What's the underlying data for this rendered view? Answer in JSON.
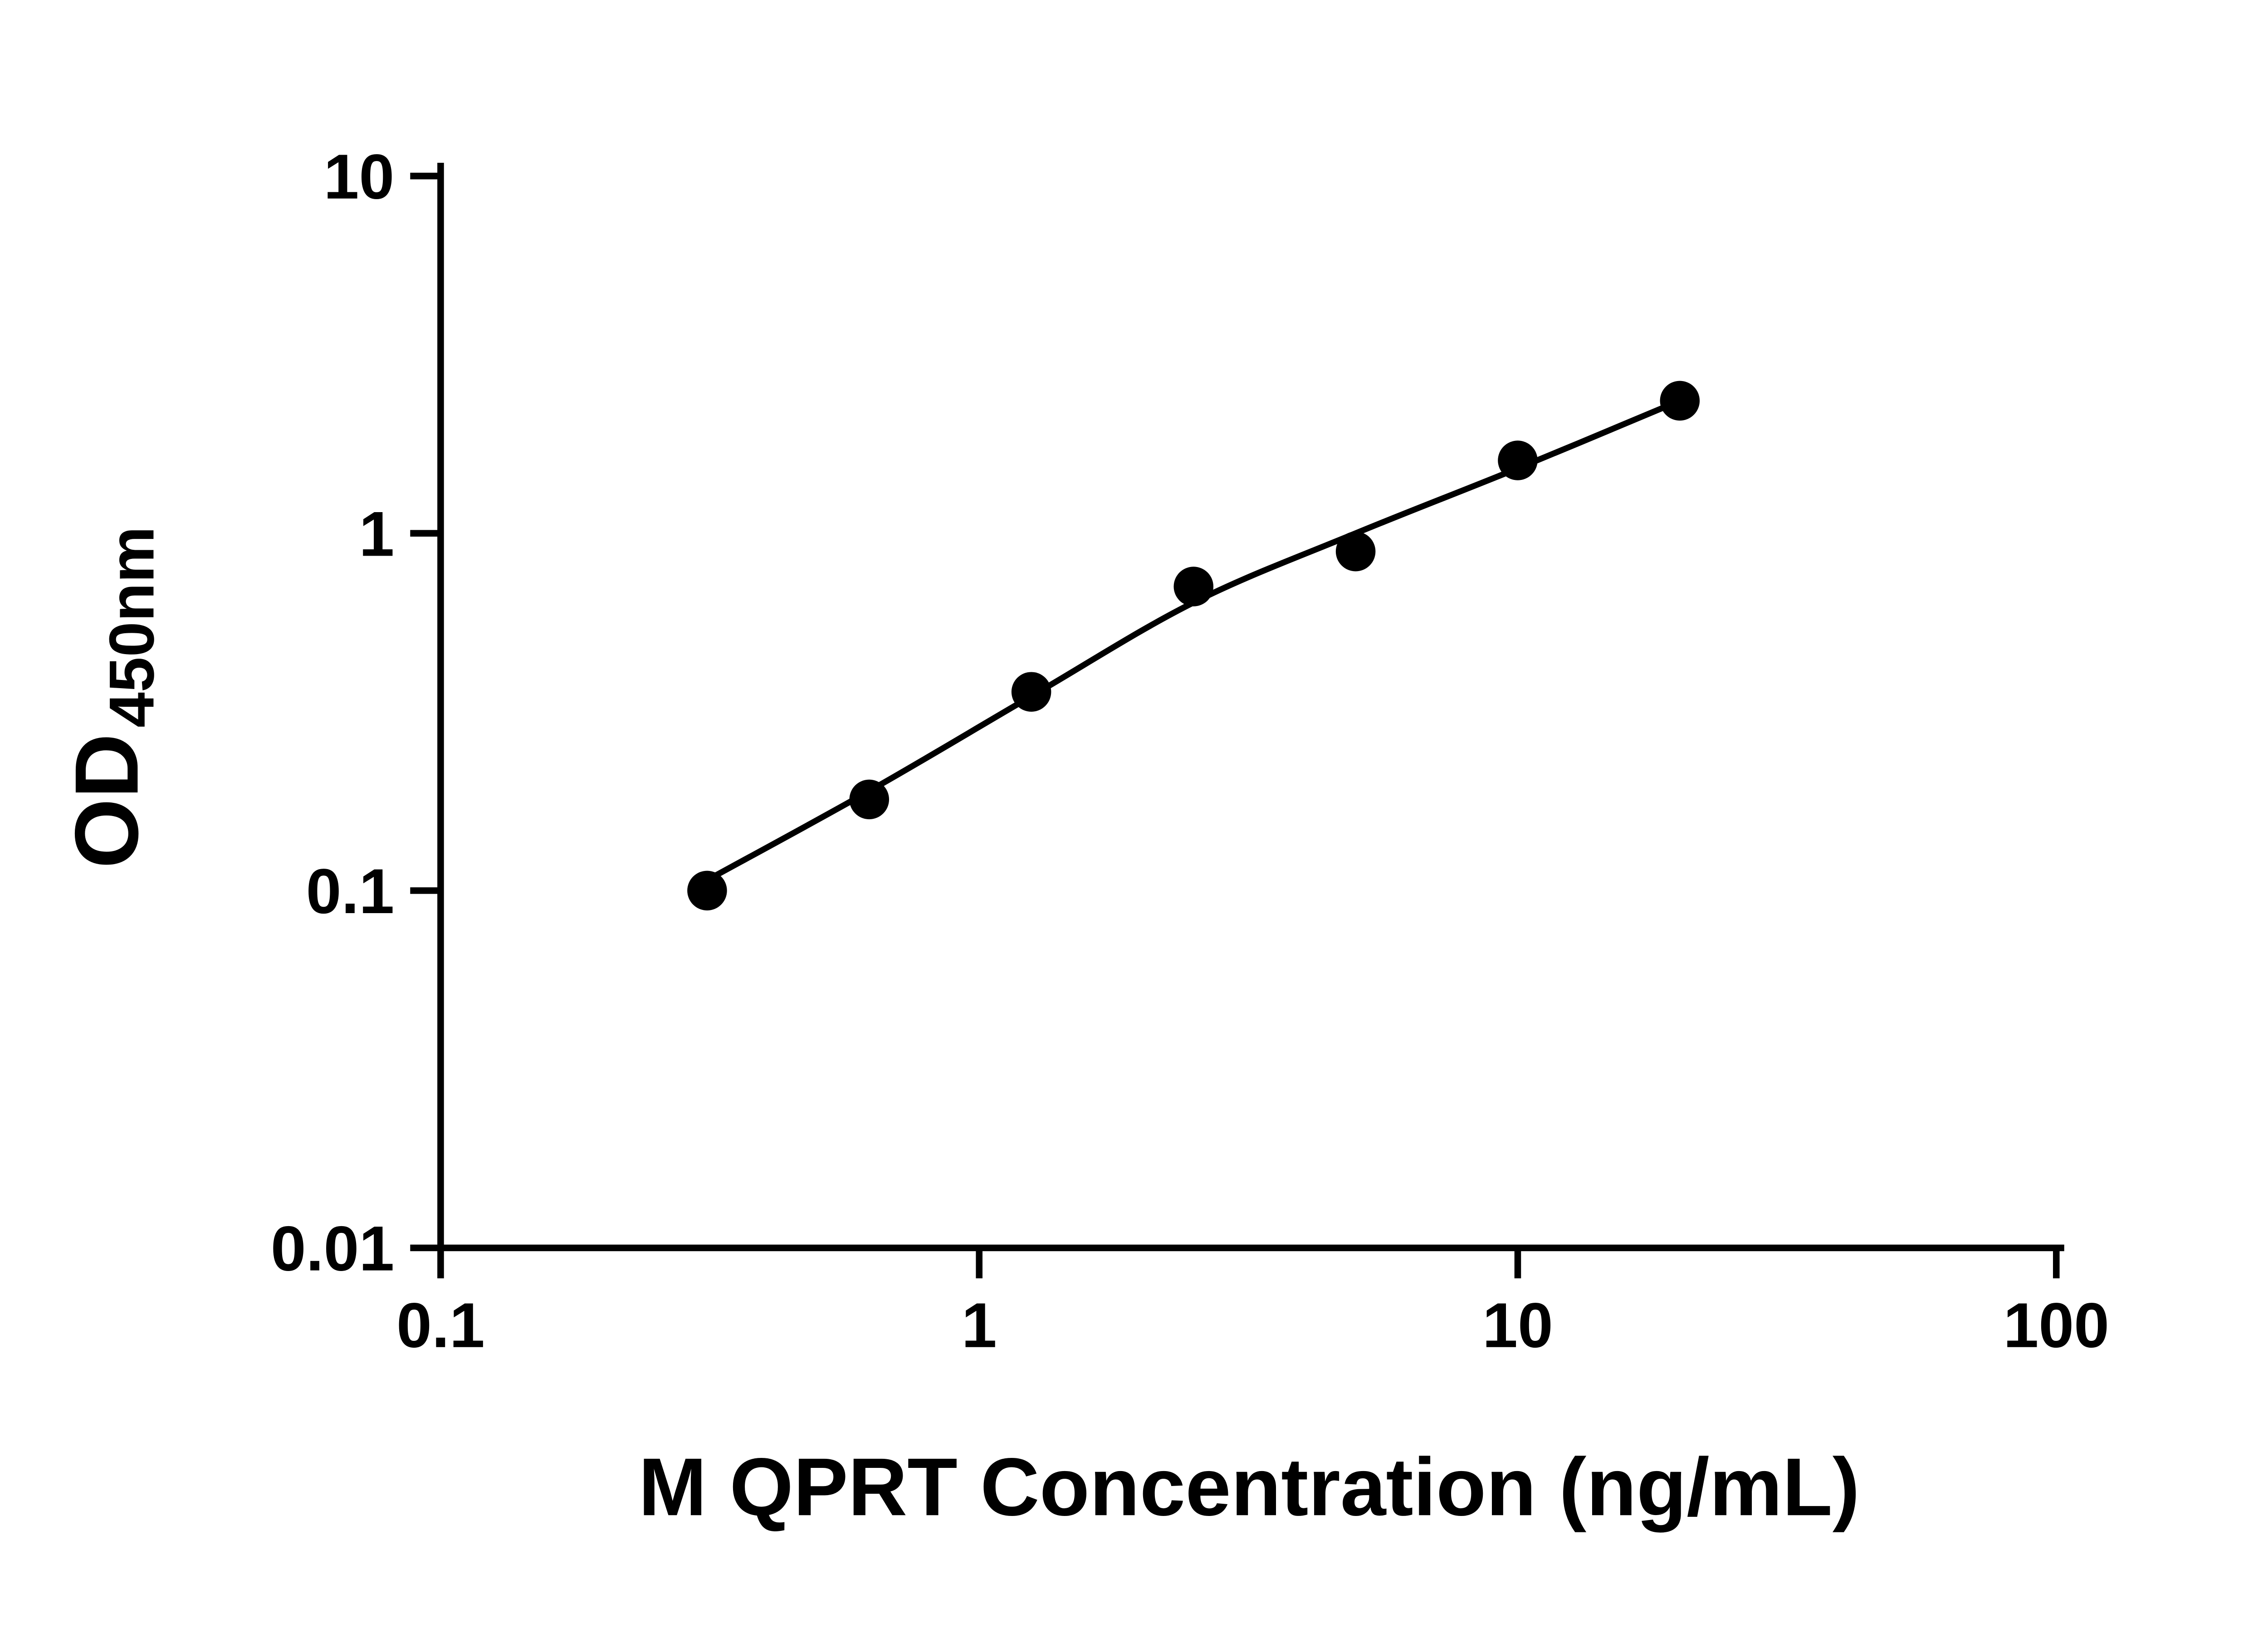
{
  "figure": {
    "background_color": "#ffffff",
    "ink_color": "#000000"
  },
  "chart_data": {
    "type": "scatter",
    "title": "",
    "xlabel": "M QPRT Concentration (ng/mL)",
    "ylabel": "OD",
    "ylabel_subscript": "450nm",
    "x_scale": "log",
    "y_scale": "log",
    "xlim": [
      0.1,
      100
    ],
    "ylim": [
      0.01,
      10
    ],
    "x_ticks": [
      0.1,
      1,
      10,
      100
    ],
    "x_tick_labels": [
      "0.1",
      "1",
      "10",
      "100"
    ],
    "y_ticks": [
      0.01,
      0.1,
      1,
      10
    ],
    "y_tick_labels": [
      "0.01",
      "0.1",
      "1",
      "10"
    ],
    "grid": false,
    "legend": "none",
    "series": [
      {
        "name": "standard-points",
        "marker": "filled-circle",
        "color": "#000000",
        "points": [
          {
            "x": 0.3125,
            "y": 0.1
          },
          {
            "x": 0.625,
            "y": 0.18
          },
          {
            "x": 1.25,
            "y": 0.36
          },
          {
            "x": 2.5,
            "y": 0.71
          },
          {
            "x": 5,
            "y": 0.89
          },
          {
            "x": 10,
            "y": 1.6
          },
          {
            "x": 20,
            "y": 2.35
          }
        ]
      }
    ],
    "fit_curve": {
      "name": "fitted-standard-curve",
      "color": "#000000",
      "points": [
        {
          "x": 0.3125,
          "y": 0.107
        },
        {
          "x": 0.625,
          "y": 0.19
        },
        {
          "x": 1.25,
          "y": 0.35
        },
        {
          "x": 2.5,
          "y": 0.64
        },
        {
          "x": 5,
          "y": 1.0
        },
        {
          "x": 10,
          "y": 1.52
        },
        {
          "x": 20,
          "y": 2.35
        }
      ]
    }
  }
}
